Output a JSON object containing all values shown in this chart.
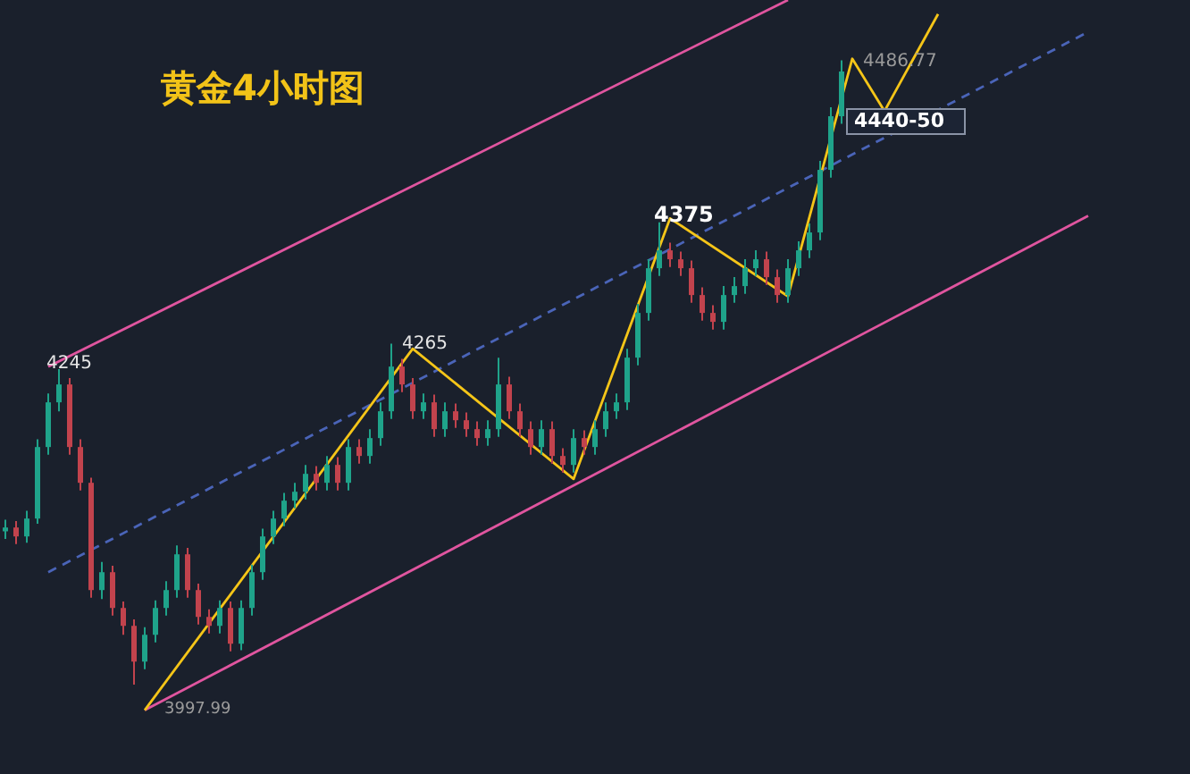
{
  "chart_data": {
    "type": "candlestick",
    "title": "黄金4小时图",
    "ylim": [
      3928,
      4534
    ],
    "tick_labels": false,
    "categories": [
      null,
      null,
      null,
      null,
      null,
      null,
      null,
      null,
      null,
      null,
      null,
      null,
      null,
      null,
      null,
      null,
      null,
      null,
      null,
      null,
      null,
      null,
      null,
      null,
      null,
      null,
      null,
      null,
      null,
      null,
      null,
      null,
      null,
      null,
      null,
      null,
      null,
      null,
      null,
      null,
      null,
      null,
      null,
      null,
      null,
      null,
      null,
      null,
      null,
      null,
      null,
      null,
      null,
      null,
      null,
      null,
      null,
      null,
      null,
      null,
      null,
      null,
      null,
      null,
      null,
      null,
      null,
      null,
      null,
      null,
      null,
      null,
      null,
      null,
      null,
      null,
      null,
      null,
      null,
      null,
      null,
      null,
      null,
      null,
      null,
      null,
      null,
      null,
      null,
      null,
      null,
      null,
      null,
      null,
      null,
      null,
      null,
      null,
      null,
      null,
      null,
      null
    ],
    "ohlc": [
      [
        4118,
        4127,
        4112,
        4121
      ],
      [
        4121,
        4126,
        4108,
        4114
      ],
      [
        4114,
        4134,
        4109,
        4128
      ],
      [
        4128,
        4190,
        4124,
        4184
      ],
      [
        4184,
        4226,
        4178,
        4219
      ],
      [
        4219,
        4245,
        4212,
        4233
      ],
      [
        4233,
        4238,
        4178,
        4184
      ],
      [
        4184,
        4190,
        4150,
        4156
      ],
      [
        4156,
        4160,
        4066,
        4072
      ],
      [
        4072,
        4094,
        4065,
        4086
      ],
      [
        4086,
        4091,
        4052,
        4058
      ],
      [
        4058,
        4063,
        4037,
        4044
      ],
      [
        4044,
        4049,
        3997.99,
        4016
      ],
      [
        4016,
        4043,
        4010,
        4037
      ],
      [
        4037,
        4064,
        4031,
        4058
      ],
      [
        4058,
        4079,
        4052,
        4072
      ],
      [
        4072,
        4107,
        4066,
        4100
      ],
      [
        4100,
        4105,
        4066,
        4072
      ],
      [
        4072,
        4077,
        4045,
        4051
      ],
      [
        4051,
        4057,
        4038,
        4044
      ],
      [
        4044,
        4064,
        4038,
        4058
      ],
      [
        4058,
        4063,
        4024,
        4030
      ],
      [
        4030,
        4064,
        4025,
        4058
      ],
      [
        4058,
        4092,
        4052,
        4086
      ],
      [
        4086,
        4120,
        4080,
        4114
      ],
      [
        4114,
        4134,
        4108,
        4128
      ],
      [
        4128,
        4148,
        4122,
        4142
      ],
      [
        4142,
        4156,
        4136,
        4149
      ],
      [
        4149,
        4170,
        4143,
        4163
      ],
      [
        4163,
        4169,
        4150,
        4156
      ],
      [
        4156,
        4177,
        4150,
        4170
      ],
      [
        4170,
        4176,
        4150,
        4156
      ],
      [
        4156,
        4190,
        4150,
        4184
      ],
      [
        4184,
        4190,
        4171,
        4177
      ],
      [
        4177,
        4198,
        4171,
        4191
      ],
      [
        4191,
        4219,
        4185,
        4212
      ],
      [
        4212,
        4265,
        4206,
        4247
      ],
      [
        4247,
        4253,
        4227,
        4233
      ],
      [
        4233,
        4238,
        4206,
        4212
      ],
      [
        4212,
        4226,
        4206,
        4219
      ],
      [
        4219,
        4225,
        4192,
        4198
      ],
      [
        4198,
        4219,
        4192,
        4212
      ],
      [
        4212,
        4218,
        4199,
        4205
      ],
      [
        4205,
        4211,
        4192,
        4198
      ],
      [
        4198,
        4204,
        4185,
        4191
      ],
      [
        4191,
        4205,
        4185,
        4198
      ],
      [
        4198,
        4254,
        4192,
        4233
      ],
      [
        4233,
        4239,
        4206,
        4212
      ],
      [
        4212,
        4218,
        4192,
        4198
      ],
      [
        4198,
        4204,
        4178,
        4184
      ],
      [
        4184,
        4205,
        4178,
        4198
      ],
      [
        4198,
        4204,
        4171,
        4177
      ],
      [
        4177,
        4183,
        4164,
        4170
      ],
      [
        4170,
        4198,
        4164,
        4191
      ],
      [
        4191,
        4197,
        4178,
        4184
      ],
      [
        4184,
        4205,
        4178,
        4198
      ],
      [
        4198,
        4219,
        4192,
        4212
      ],
      [
        4212,
        4226,
        4206,
        4219
      ],
      [
        4219,
        4261,
        4213,
        4254
      ],
      [
        4254,
        4296,
        4248,
        4289
      ],
      [
        4289,
        4331,
        4283,
        4324
      ],
      [
        4324,
        4360,
        4318,
        4338
      ],
      [
        4338,
        4344,
        4325,
        4331
      ],
      [
        4331,
        4337,
        4318,
        4324
      ],
      [
        4324,
        4330,
        4297,
        4303
      ],
      [
        4303,
        4309,
        4283,
        4289
      ],
      [
        4289,
        4295,
        4276,
        4282
      ],
      [
        4282,
        4310,
        4276,
        4303
      ],
      [
        4303,
        4317,
        4297,
        4310
      ],
      [
        4310,
        4331,
        4304,
        4324
      ],
      [
        4324,
        4338,
        4318,
        4331
      ],
      [
        4331,
        4337,
        4311,
        4317
      ],
      [
        4317,
        4323,
        4297,
        4303
      ],
      [
        4303,
        4331,
        4297,
        4324
      ],
      [
        4324,
        4345,
        4318,
        4338
      ],
      [
        4338,
        4359,
        4332,
        4352
      ],
      [
        4352,
        4408,
        4346,
        4401
      ],
      [
        4401,
        4450,
        4395,
        4443
      ],
      [
        4443,
        4486.77,
        4437,
        4478
      ],
      null,
      null,
      null,
      null,
      null,
      null,
      null,
      null,
      null,
      null,
      null,
      null,
      null,
      null,
      null,
      null,
      null,
      null,
      null,
      null,
      null,
      null,
      null
    ],
    "series": [
      {
        "type": "line",
        "color": "#e0559f",
        "line_style": "solid",
        "values": [
          null,
          null,
          null,
          null,
          4247,
          null,
          null,
          null,
          null,
          null,
          null,
          null,
          null,
          null,
          null,
          null,
          null,
          null,
          null,
          null,
          null,
          null,
          null,
          null,
          null,
          null,
          null,
          null,
          null,
          null,
          null,
          null,
          null,
          null,
          null,
          null,
          null,
          null,
          null,
          null,
          null,
          null,
          null,
          null,
          null,
          null,
          null,
          null,
          null,
          null,
          null,
          null,
          null,
          null,
          null,
          null,
          null,
          null,
          null,
          null,
          null,
          null,
          null,
          null,
          null,
          null,
          null,
          null,
          null,
          null,
          null,
          null,
          null,
          4534,
          null,
          null,
          null,
          null,
          null,
          null,
          null,
          null,
          null,
          null,
          null,
          null,
          null,
          null,
          null,
          null,
          null,
          null,
          null,
          null,
          null,
          null,
          null,
          null,
          null,
          null,
          null,
          null
        ]
      },
      {
        "type": "line",
        "color": "#e0559f",
        "line_style": "solid",
        "values": [
          null,
          null,
          null,
          null,
          null,
          null,
          null,
          null,
          null,
          null,
          null,
          null,
          null,
          3978,
          null,
          null,
          null,
          null,
          null,
          null,
          null,
          null,
          null,
          null,
          null,
          null,
          null,
          null,
          null,
          null,
          null,
          null,
          null,
          null,
          null,
          null,
          null,
          null,
          null,
          null,
          null,
          null,
          null,
          null,
          null,
          null,
          null,
          null,
          null,
          null,
          null,
          null,
          null,
          null,
          null,
          null,
          null,
          null,
          null,
          null,
          null,
          null,
          null,
          null,
          null,
          null,
          null,
          null,
          null,
          null,
          null,
          null,
          null,
          null,
          null,
          null,
          null,
          null,
          null,
          null,
          null,
          null,
          null,
          null,
          null,
          null,
          null,
          null,
          null,
          null,
          null,
          null,
          null,
          null,
          null,
          null,
          null,
          null,
          null,
          null,
          null,
          4365
        ]
      },
      {
        "type": "line",
        "color": "#4a64b8",
        "line_style": "dashed",
        "values": [
          null,
          null,
          null,
          null,
          4086,
          null,
          null,
          null,
          null,
          null,
          null,
          null,
          null,
          null,
          null,
          null,
          null,
          null,
          null,
          null,
          null,
          null,
          null,
          null,
          null,
          null,
          null,
          null,
          null,
          null,
          null,
          null,
          null,
          null,
          null,
          null,
          null,
          null,
          null,
          null,
          null,
          null,
          null,
          null,
          null,
          null,
          null,
          null,
          null,
          null,
          null,
          null,
          null,
          null,
          null,
          null,
          null,
          null,
          null,
          null,
          null,
          null,
          null,
          null,
          null,
          null,
          null,
          null,
          null,
          null,
          null,
          null,
          null,
          null,
          null,
          null,
          null,
          null,
          null,
          null,
          null,
          null,
          null,
          null,
          null,
          null,
          null,
          null,
          null,
          null,
          null,
          null,
          null,
          null,
          null,
          null,
          null,
          null,
          null,
          null,
          null,
          4509
        ]
      },
      {
        "type": "line",
        "color": "#f5c518",
        "line_style": "solid",
        "values": [
          null,
          null,
          null,
          null,
          null,
          null,
          null,
          null,
          null,
          null,
          null,
          null,
          null,
          3978,
          null,
          null,
          null,
          null,
          null,
          null,
          null,
          null,
          null,
          null,
          null,
          null,
          null,
          null,
          null,
          null,
          null,
          null,
          null,
          null,
          null,
          null,
          null,
          null,
          4261,
          null,
          null,
          null,
          null,
          null,
          null,
          null,
          null,
          null,
          null,
          null,
          null,
          null,
          null,
          4159,
          null,
          null,
          null,
          null,
          null,
          null,
          null,
          null,
          4363,
          null,
          null,
          null,
          null,
          null,
          null,
          null,
          null,
          null,
          null,
          4302,
          null,
          null,
          null,
          null,
          null,
          4488,
          null,
          null,
          4447,
          null,
          null,
          null,
          null,
          4523,
          null,
          null,
          null,
          null,
          null,
          null,
          null,
          null,
          null,
          null,
          null,
          null,
          null,
          null
        ]
      }
    ],
    "annotations": [
      "4245",
      "4265",
      "4375",
      "4486.77",
      "3997.99",
      "4440-50"
    ]
  }
}
